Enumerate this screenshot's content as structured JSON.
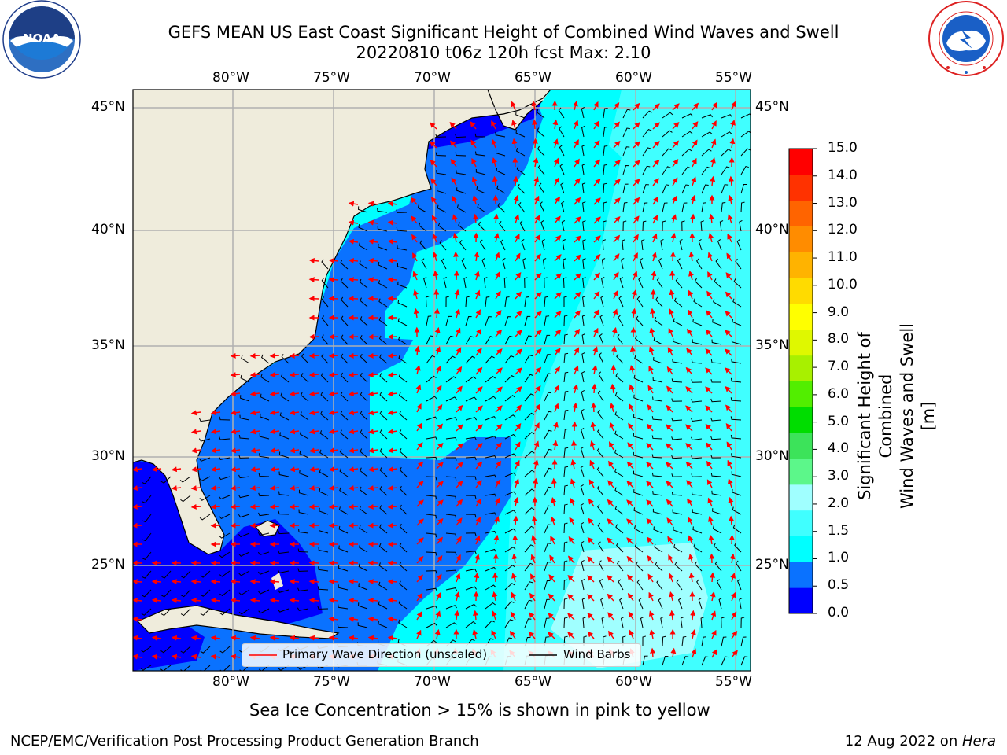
{
  "header": {
    "title_line1": "GEFS MEAN US East Coast Significant Height of Combined Wind Waves and Swell",
    "title_line2": "20220810 t06z 120h fcst   Max: 2.10"
  },
  "logos": {
    "noaa": {
      "text": "NOAA",
      "ring_text": "NATIONAL OCEANIC AND ATMOSPHERIC ADMINISTRATION · U.S. DEPARTMENT OF COMMERCE"
    },
    "nws": {
      "ring_text": "NATIONAL WEATHER SERVICE"
    }
  },
  "axes": {
    "lon_labels": [
      "80°W",
      "75°W",
      "70°W",
      "65°W",
      "60°W",
      "55°W"
    ],
    "lat_labels": [
      "45°N",
      "40°N",
      "35°N",
      "30°N",
      "25°N"
    ]
  },
  "colorbar": {
    "label_line1": "Significant Height of Combined",
    "label_line2": "Wind Waves and Swell [m]",
    "ticks": [
      "0.0",
      "0.5",
      "1.0",
      "1.5",
      "2.0",
      "3.0",
      "4.0",
      "5.0",
      "6.0",
      "7.0",
      "8.0",
      "9.0",
      "10.0",
      "11.0",
      "12.0",
      "13.0",
      "14.0",
      "15.0"
    ],
    "colors": [
      "#0000ff",
      "#0a72ff",
      "#00ffff",
      "#40ffff",
      "#a0ffff",
      "#5cf78a",
      "#3ce35a",
      "#00dd00",
      "#52ee00",
      "#a8f000",
      "#dff800",
      "#ffff00",
      "#ffdb00",
      "#ffb300",
      "#ff8c00",
      "#ff6400",
      "#ff3200",
      "#ff0000"
    ]
  },
  "legend": {
    "wave_label": "Primary Wave Direction (unscaled)",
    "wind_label": "Wind Barbs",
    "wave_color": "#ff0000",
    "wind_color": "#000000"
  },
  "colors": {
    "land": "#efecdc",
    "ocean_low": "#0000ff",
    "ocean_mid": "#0a72ff",
    "ocean_high": "#00ffff",
    "ocean_higher": "#40ffff",
    "ocean_top": "#a0ffff",
    "grid": "#b0b0b0"
  },
  "note": "Sea Ice Concentration > 15% is shown in pink to yellow",
  "footer": {
    "left": "NCEP/EMC/Verification Post Processing Product Generation Branch",
    "right_prefix": "12 Aug 2022 on ",
    "right_italic": "Hera"
  }
}
